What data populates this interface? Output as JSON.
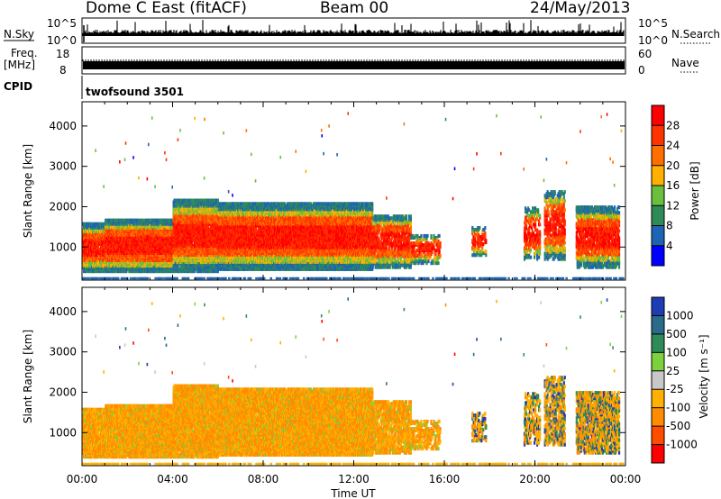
{
  "header": {
    "station": "Dome C East (fitACF)",
    "beam": "Beam 00",
    "date": "24/May/2013"
  },
  "panels": {
    "nsky": {
      "label": "N.Sky",
      "ticks": [
        "10^5",
        "10^0"
      ],
      "right_ticks": [
        "10^5",
        "10^0"
      ],
      "right_label": "N.Search"
    },
    "freq": {
      "label_top": "Freq.",
      "label_unit": "[MHz]",
      "ticks": [
        "18",
        "8"
      ],
      "right_ticks": [
        "60",
        "0"
      ],
      "right_label": "Nave"
    },
    "cpid": {
      "label": "CPID",
      "text": "twofsound 3501"
    }
  },
  "chart_data": [
    {
      "type": "heatmap",
      "name": "power",
      "ylabel": "Slant Range [km]",
      "yticks": [
        "4000",
        "3000",
        "2000",
        "1000"
      ],
      "ylim": [
        180,
        4600
      ],
      "colorbar": {
        "label": "Power [dB]",
        "ticks": [
          "28",
          "24",
          "20",
          "16",
          "12",
          "8",
          "4"
        ],
        "colors": [
          "#ff0000",
          "#ff3300",
          "#ff6f00",
          "#ffb000",
          "#6abf3c",
          "#2e8b57",
          "#1e64b4",
          "#0000ff"
        ]
      }
    },
    {
      "type": "heatmap",
      "name": "velocity",
      "ylabel": "Slant Range [km]",
      "yticks": [
        "4000",
        "3000",
        "2000",
        "1000"
      ],
      "ylim": [
        180,
        4600
      ],
      "colorbar": {
        "label": "Velocity [m s⁻¹]",
        "ticks": [
          "1000",
          "500",
          "100",
          "25",
          "-25",
          "-100",
          "-500",
          "-1000"
        ],
        "colors": [
          "#1e3cb4",
          "#2a6a8a",
          "#2e8b57",
          "#7cd23c",
          "#c8c8c8",
          "#ffb000",
          "#ff8c00",
          "#ff4d00",
          "#ff0000"
        ]
      }
    }
  ],
  "xaxis": {
    "label": "Time UT",
    "ticks": [
      "00:00",
      "04:00",
      "08:00",
      "12:00",
      "16:00",
      "20:00",
      "00:00"
    ]
  }
}
